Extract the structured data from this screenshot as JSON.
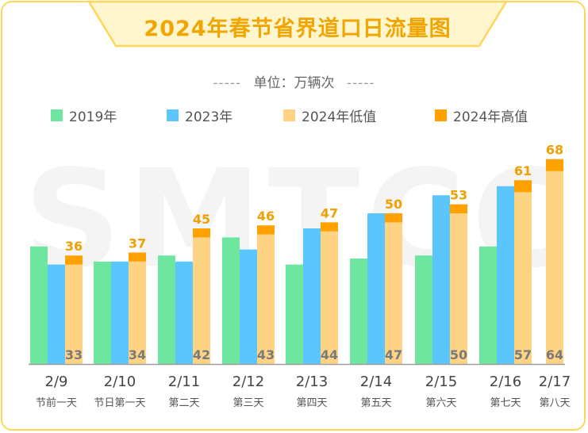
{
  "title": "2024年春节省界道口日流量图",
  "unit": "单位：万辆次",
  "unit_dash": "-----",
  "watermark": "SMTCC",
  "colors": {
    "s2019": "#6ee6a0",
    "s2023": "#5bc6fb",
    "s2024low": "#ffd384",
    "s2024high": "#ffa200",
    "label_high": "#f0a000",
    "label_low": "#7a7a7a",
    "frame": "#ffd65a",
    "title_bg": "#fff6cf"
  },
  "legend": [
    {
      "label": "2019年",
      "color": "#6ee6a0"
    },
    {
      "label": "2023年",
      "color": "#5bc6fb"
    },
    {
      "label": "2024年低值",
      "color": "#ffd384"
    },
    {
      "label": "2024年高值",
      "color": "#ffa200"
    }
  ],
  "chart_data": {
    "type": "bar",
    "title": "2024年春节省界道口日流量图",
    "ylabel": "单位：万辆次",
    "ylim": [
      0,
      72
    ],
    "categories": [
      "2/9",
      "2/10",
      "2/11",
      "2/12",
      "2/13",
      "2/14",
      "2/15",
      "2/16",
      "2/17"
    ],
    "sublabels": [
      "节前一天",
      "节日第一天",
      "第二天",
      "第三天",
      "第四天",
      "第五天",
      "第六天",
      "第七天",
      "第八天"
    ],
    "series": [
      {
        "name": "2019年",
        "values": [
          39,
          34,
          36,
          42,
          33,
          35,
          36,
          39,
          null
        ]
      },
      {
        "name": "2023年",
        "values": [
          33,
          34,
          34,
          38,
          45,
          50,
          56,
          59,
          null
        ]
      },
      {
        "name": "2024年低值",
        "values": [
          33,
          34,
          42,
          43,
          44,
          47,
          50,
          57,
          64
        ]
      },
      {
        "name": "2024年高值",
        "values": [
          36,
          37,
          45,
          46,
          47,
          50,
          53,
          61,
          68
        ]
      }
    ],
    "grid": false,
    "legend_position": "top"
  }
}
